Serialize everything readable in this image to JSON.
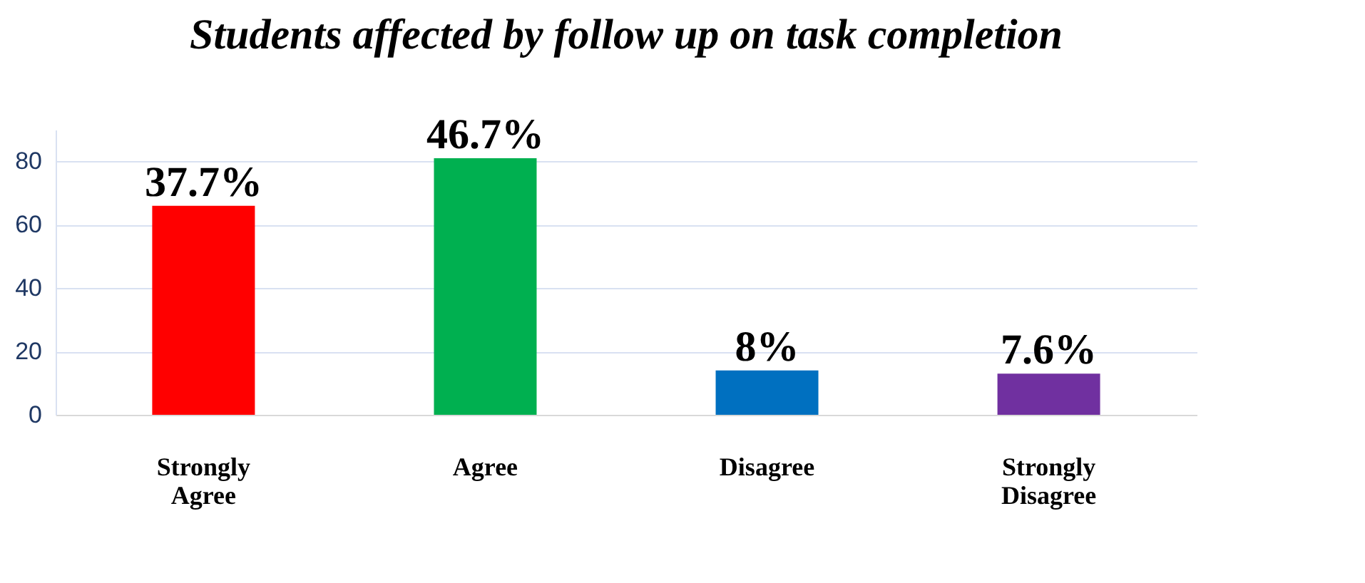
{
  "chart_data": {
    "type": "bar",
    "title": "Students affected by follow up on task completion",
    "categories": [
      "Strongly Agree",
      "Agree",
      "Disagree",
      "Strongly Disagree"
    ],
    "values": [
      66,
      81,
      14,
      13
    ],
    "colors": [
      "#ff0000",
      "#00b050",
      "#0070c0",
      "#7030a0"
    ],
    "annotations": [
      {
        "text": "37.7%",
        "x": "Strongly Agree",
        "y": 66
      },
      {
        "text": "46.7%",
        "x": "Agree",
        "y": 81
      },
      {
        "text": "8%",
        "x": "Disagree",
        "y": 14
      },
      {
        "text": "7.6%",
        "x": "Strongly Disagree",
        "y": 13
      }
    ],
    "ylim": [
      0,
      90
    ],
    "yticks": [
      0,
      20,
      40,
      60,
      80
    ],
    "grid": "y",
    "legend": false
  }
}
